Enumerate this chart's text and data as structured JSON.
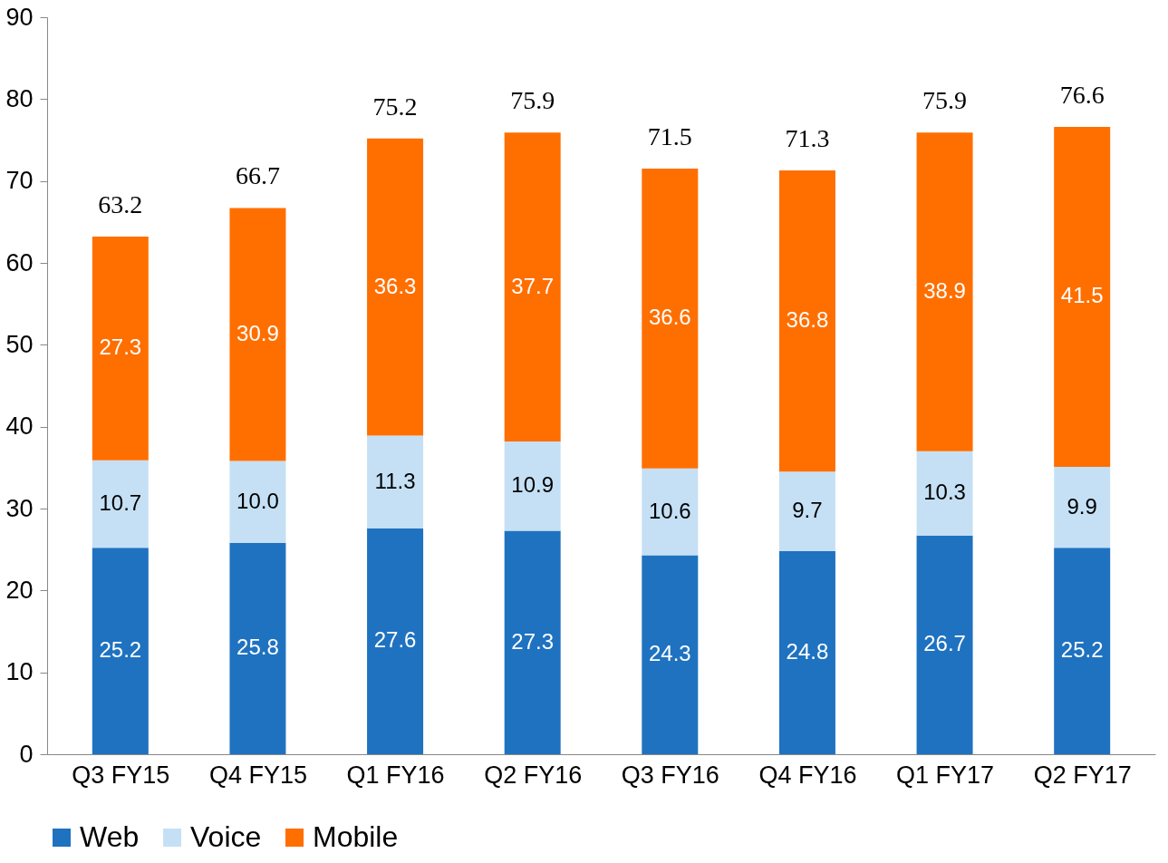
{
  "chart_data": {
    "type": "bar",
    "stacked": true,
    "categories": [
      "Q3 FY15",
      "Q4 FY15",
      "Q1 FY16",
      "Q2 FY16",
      "Q3 FY16",
      "Q4 FY16",
      "Q1 FY17",
      "Q2 FY17"
    ],
    "series": [
      {
        "name": "Web",
        "color": "#1f72c0",
        "values": [
          25.2,
          25.8,
          27.6,
          27.3,
          24.3,
          24.8,
          26.7,
          25.2
        ]
      },
      {
        "name": "Voice",
        "color": "#c5e0f5",
        "values": [
          10.7,
          10.0,
          11.3,
          10.9,
          10.6,
          9.7,
          10.3,
          9.9
        ],
        "value_labels": [
          "10.7",
          "10.0",
          "11.3",
          "10.9",
          "10.6",
          "9.7",
          "10.3",
          "9.9"
        ]
      },
      {
        "name": "Mobile",
        "color": "#ff6f00",
        "values": [
          27.3,
          30.9,
          36.3,
          37.7,
          36.6,
          36.8,
          38.9,
          41.5
        ]
      }
    ],
    "totals": [
      "63.2",
      "66.7",
      "75.2",
      "75.9",
      "71.5",
      "71.3",
      "75.9",
      "76.6"
    ],
    "data_labels": true,
    "ylim": [
      0,
      90
    ],
    "yticks": [
      0,
      10,
      20,
      30,
      40,
      50,
      60,
      70,
      80,
      90
    ],
    "grid": false,
    "legend": "bottom"
  }
}
